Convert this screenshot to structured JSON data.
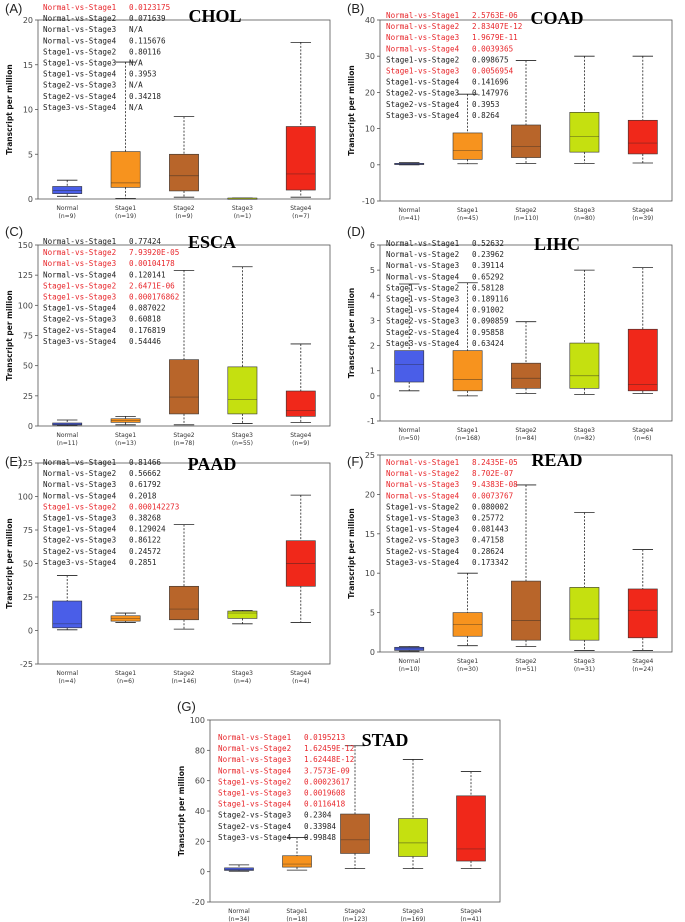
{
  "figure": {
    "colors": {
      "Normal": "#4a5ee8",
      "Stage1": "#f7931e",
      "Stage2": "#b8652a",
      "Stage3": "#c5e010",
      "Stage4": "#f0281a",
      "significant": "#e8262b",
      "nonsignificant": "#222222"
    }
  },
  "chart_data": [
    {
      "type": "boxplot",
      "panel": "(A)",
      "title": "CHOL",
      "ylabel": "Transcript per million",
      "ylim": [
        0,
        20
      ],
      "yticks": [
        0,
        5,
        10,
        15,
        20
      ],
      "categories": [
        "Normal",
        "Stage1",
        "Stage2",
        "Stage3",
        "Stage4"
      ],
      "counts": [
        "(n=9)",
        "(n=19)",
        "(n=9)",
        "(n=1)",
        "(n=7)"
      ],
      "boxes": [
        {
          "min": 0.3,
          "q1": 0.6,
          "median": 0.95,
          "q3": 1.4,
          "max": 2.1
        },
        {
          "min": 0.05,
          "q1": 1.3,
          "median": 1.8,
          "q3": 5.3,
          "max": 15.3
        },
        {
          "min": 0.2,
          "q1": 0.9,
          "median": 2.6,
          "q3": 5.0,
          "max": 9.2
        },
        {
          "min": 0.1,
          "q1": 0.1,
          "median": 0.1,
          "q3": 0.1,
          "max": 0.1
        },
        {
          "min": 0.2,
          "q1": 1.0,
          "median": 2.8,
          "q3": 8.1,
          "max": 17.5
        }
      ],
      "stats": [
        {
          "label": "Normal-vs-Stage1",
          "value": "0.0123175",
          "significant": true
        },
        {
          "label": "Normal-vs-Stage2",
          "value": "0.071639",
          "significant": false
        },
        {
          "label": "Normal-vs-Stage3",
          "value": "N/A",
          "significant": false
        },
        {
          "label": "Normal-vs-Stage4",
          "value": "0.115676",
          "significant": false
        },
        {
          "label": "Stage1-vs-Stage2",
          "value": "0.80116",
          "significant": false
        },
        {
          "label": "Stage1-vs-Stage3",
          "value": "N/A",
          "significant": false
        },
        {
          "label": "Stage1-vs-Stage4",
          "value": "0.3953",
          "significant": false
        },
        {
          "label": "Stage2-vs-Stage3",
          "value": "N/A",
          "significant": false
        },
        {
          "label": "Stage2-vs-Stage4",
          "value": "0.34218",
          "significant": false
        },
        {
          "label": "Stage3-vs-Stage4",
          "value": "N/A",
          "significant": false
        }
      ]
    },
    {
      "type": "boxplot",
      "panel": "(B)",
      "title": "COAD",
      "ylabel": "Transcript per million",
      "ylim": [
        -10,
        40
      ],
      "yticks": [
        -10,
        0,
        10,
        20,
        30,
        40
      ],
      "categories": [
        "Normal",
        "Stage1",
        "Stage2",
        "Stage3",
        "Stage4"
      ],
      "counts": [
        "(n=41)",
        "(n=45)",
        "(n=110)",
        "(n=80)",
        "(n=39)"
      ],
      "boxes": [
        {
          "min": 0.0,
          "q1": 0.1,
          "median": 0.2,
          "q3": 0.4,
          "max": 0.6
        },
        {
          "min": 0.3,
          "q1": 1.5,
          "median": 4.0,
          "q3": 8.8,
          "max": 19.5
        },
        {
          "min": 0.4,
          "q1": 2.0,
          "median": 5.0,
          "q3": 11.0,
          "max": 28.8
        },
        {
          "min": 0.4,
          "q1": 3.5,
          "median": 7.8,
          "q3": 14.5,
          "max": 30.0
        },
        {
          "min": 0.5,
          "q1": 3.0,
          "median": 6.0,
          "q3": 12.3,
          "max": 30.0
        }
      ],
      "stats": [
        {
          "label": "Normal-vs-Stage1",
          "value": "2.5763E-06",
          "significant": true
        },
        {
          "label": "Normal-vs-Stage2",
          "value": "2.83407E-12",
          "significant": true
        },
        {
          "label": "Normal-vs-Stage3",
          "value": "1.9679E-11",
          "significant": true
        },
        {
          "label": "Normal-vs-Stage4",
          "value": "0.0039365",
          "significant": true
        },
        {
          "label": "Stage1-vs-Stage2",
          "value": "0.098675",
          "significant": false
        },
        {
          "label": "Stage1-vs-Stage3",
          "value": "0.0056954",
          "significant": true
        },
        {
          "label": "Stage1-vs-Stage4",
          "value": "0.141696",
          "significant": false
        },
        {
          "label": "Stage2-vs-Stage3",
          "value": "0.147976",
          "significant": false
        },
        {
          "label": "Stage2-vs-Stage4",
          "value": "0.3953",
          "significant": false
        },
        {
          "label": "Stage3-vs-Stage4",
          "value": "0.8264",
          "significant": false
        }
      ]
    },
    {
      "type": "boxplot",
      "panel": "(C)",
      "title": "ESCA",
      "ylabel": "Transcript per million",
      "ylim": [
        0,
        150
      ],
      "yticks": [
        0,
        25,
        50,
        75,
        100,
        125,
        150
      ],
      "categories": [
        "Normal",
        "Stage1",
        "Stage2",
        "Stage3",
        "Stage4"
      ],
      "counts": [
        "(n=11)",
        "(n=13)",
        "(n=78)",
        "(n=55)",
        "(n=9)"
      ],
      "boxes": [
        {
          "min": 0.3,
          "q1": 0.8,
          "median": 1.5,
          "q3": 2.5,
          "max": 5.0
        },
        {
          "min": 1.0,
          "q1": 3.0,
          "median": 4.5,
          "q3": 6.0,
          "max": 8.0
        },
        {
          "min": 1.0,
          "q1": 10.0,
          "median": 24.0,
          "q3": 55.0,
          "max": 129.0
        },
        {
          "min": 2.0,
          "q1": 10.0,
          "median": 22.0,
          "q3": 49.0,
          "max": 132.0
        },
        {
          "min": 3.0,
          "q1": 8.0,
          "median": 13.0,
          "q3": 29.0,
          "max": 68.0
        }
      ],
      "stats": [
        {
          "label": "Normal-vs-Stage1",
          "value": "0.77424",
          "significant": false
        },
        {
          "label": "Normal-vs-Stage2",
          "value": "7.93920E-05",
          "significant": true
        },
        {
          "label": "Normal-vs-Stage3",
          "value": "0.00104178",
          "significant": true
        },
        {
          "label": "Normal-vs-Stage4",
          "value": "0.120141",
          "significant": false
        },
        {
          "label": "Stage1-vs-Stage2",
          "value": "2.6471E-06",
          "significant": true
        },
        {
          "label": "Stage1-vs-Stage3",
          "value": "0.000176862",
          "significant": true
        },
        {
          "label": "Stage1-vs-Stage4",
          "value": "0.087022",
          "significant": false
        },
        {
          "label": "Stage2-vs-Stage3",
          "value": "0.60818",
          "significant": false
        },
        {
          "label": "Stage2-vs-Stage4",
          "value": "0.176819",
          "significant": false
        },
        {
          "label": "Stage3-vs-Stage4",
          "value": "0.54446",
          "significant": false
        }
      ]
    },
    {
      "type": "boxplot",
      "panel": "(D)",
      "title": "LIHC",
      "ylabel": "Transcript per million",
      "ylim": [
        -1,
        6
      ],
      "yticks": [
        -1,
        0,
        1,
        2,
        3,
        4,
        5,
        6
      ],
      "categories": [
        "Normal",
        "Stage1",
        "Stage2",
        "Stage3",
        "Stage4"
      ],
      "counts": [
        "(n=50)",
        "(n=168)",
        "(n=84)",
        "(n=82)",
        "(n=6)"
      ],
      "boxes": [
        {
          "min": 0.2,
          "q1": 0.55,
          "median": 1.25,
          "q3": 1.8,
          "max": 4.45
        },
        {
          "min": 0.0,
          "q1": 0.2,
          "median": 0.65,
          "q3": 1.8,
          "max": 4.5
        },
        {
          "min": 0.1,
          "q1": 0.3,
          "median": 0.7,
          "q3": 1.3,
          "max": 2.95
        },
        {
          "min": 0.05,
          "q1": 0.3,
          "median": 0.8,
          "q3": 2.1,
          "max": 5.0
        },
        {
          "min": 0.1,
          "q1": 0.2,
          "median": 0.45,
          "q3": 2.65,
          "max": 5.1
        }
      ],
      "stats": [
        {
          "label": "Normal-vs-Stage1",
          "value": "0.52632",
          "significant": false
        },
        {
          "label": "Normal-vs-Stage2",
          "value": "0.23962",
          "significant": false
        },
        {
          "label": "Normal-vs-Stage3",
          "value": "0.39114",
          "significant": false
        },
        {
          "label": "Normal-vs-Stage4",
          "value": "0.65292",
          "significant": false
        },
        {
          "label": "Stage1-vs-Stage2",
          "value": "0.58128",
          "significant": false
        },
        {
          "label": "Stage1-vs-Stage3",
          "value": "0.189116",
          "significant": false
        },
        {
          "label": "Stage1-vs-Stage4",
          "value": "0.91002",
          "significant": false
        },
        {
          "label": "Stage2-vs-Stage3",
          "value": "0.090859",
          "significant": false
        },
        {
          "label": "Stage2-vs-Stage4",
          "value": "0.95858",
          "significant": false
        },
        {
          "label": "Stage3-vs-Stage4",
          "value": "0.63424",
          "significant": false
        }
      ]
    },
    {
      "type": "boxplot",
      "panel": "(E)",
      "title": "PAAD",
      "ylabel": "Transcript per million",
      "ylim": [
        -25,
        125
      ],
      "yticks": [
        -25,
        0,
        25,
        50,
        75,
        100,
        125
      ],
      "categories": [
        "Normal",
        "Stage1",
        "Stage2",
        "Stage3",
        "Stage4"
      ],
      "counts": [
        "(n=4)",
        "(n=6)",
        "(n=146)",
        "(n=4)",
        "(n=4)"
      ],
      "boxes": [
        {
          "min": 0.5,
          "q1": 2.0,
          "median": 5.0,
          "q3": 22.0,
          "max": 41.0
        },
        {
          "min": 6.0,
          "q1": 7.0,
          "median": 9.0,
          "q3": 11.0,
          "max": 13.0
        },
        {
          "min": 1.0,
          "q1": 8.0,
          "median": 16.0,
          "q3": 33.0,
          "max": 79.0
        },
        {
          "min": 5.0,
          "q1": 9.0,
          "median": 13.0,
          "q3": 14.5,
          "max": 15.0
        },
        {
          "min": 6.0,
          "q1": 33.0,
          "median": 50.0,
          "q3": 67.0,
          "max": 101.0
        }
      ],
      "stats": [
        {
          "label": "Normal-vs-Stage1",
          "value": "0.81466",
          "significant": false
        },
        {
          "label": "Normal-vs-Stage2",
          "value": "0.56662",
          "significant": false
        },
        {
          "label": "Normal-vs-Stage3",
          "value": "0.61792",
          "significant": false
        },
        {
          "label": "Normal-vs-Stage4",
          "value": "0.2018",
          "significant": false
        },
        {
          "label": "Stage1-vs-Stage2",
          "value": "0.000142273",
          "significant": true
        },
        {
          "label": "Stage1-vs-Stage3",
          "value": "0.38268",
          "significant": false
        },
        {
          "label": "Stage1-vs-Stage4",
          "value": "0.129024",
          "significant": false
        },
        {
          "label": "Stage2-vs-Stage3",
          "value": "0.86122",
          "significant": false
        },
        {
          "label": "Stage2-vs-Stage4",
          "value": "0.24572",
          "significant": false
        },
        {
          "label": "Stage3-vs-Stage4",
          "value": "0.2851",
          "significant": false
        }
      ]
    },
    {
      "type": "boxplot",
      "panel": "(F)",
      "title": "READ",
      "ylabel": "Transcript per million",
      "ylim": [
        0,
        25
      ],
      "yticks": [
        0,
        5,
        10,
        15,
        20,
        25
      ],
      "categories": [
        "Normal",
        "Stage1",
        "Stage2",
        "Stage3",
        "Stage4"
      ],
      "counts": [
        "(n=10)",
        "(n=30)",
        "(n=51)",
        "(n=31)",
        "(n=24)"
      ],
      "boxes": [
        {
          "min": 0.1,
          "q1": 0.2,
          "median": 0.4,
          "q3": 0.6,
          "max": 0.7
        },
        {
          "min": 0.8,
          "q1": 2.0,
          "median": 3.5,
          "q3": 5.0,
          "max": 10.0
        },
        {
          "min": 0.7,
          "q1": 1.5,
          "median": 4.0,
          "q3": 9.0,
          "max": 21.2
        },
        {
          "min": 0.2,
          "q1": 1.5,
          "median": 4.2,
          "q3": 8.2,
          "max": 17.7
        },
        {
          "min": 0.2,
          "q1": 1.8,
          "median": 5.3,
          "q3": 8.0,
          "max": 13.0
        }
      ],
      "stats": [
        {
          "label": "Normal-vs-Stage1",
          "value": "8.2435E-05",
          "significant": true
        },
        {
          "label": "Normal-vs-Stage2",
          "value": "8.702E-07",
          "significant": true
        },
        {
          "label": "Normal-vs-Stage3",
          "value": "9.4383E-08",
          "significant": true
        },
        {
          "label": "Normal-vs-Stage4",
          "value": "0.0073767",
          "significant": true
        },
        {
          "label": "Stage1-vs-Stage2",
          "value": "0.080002",
          "significant": false
        },
        {
          "label": "Stage1-vs-Stage3",
          "value": "0.25772",
          "significant": false
        },
        {
          "label": "Stage1-vs-Stage4",
          "value": "0.081443",
          "significant": false
        },
        {
          "label": "Stage2-vs-Stage3",
          "value": "0.47158",
          "significant": false
        },
        {
          "label": "Stage2-vs-Stage4",
          "value": "0.28624",
          "significant": false
        },
        {
          "label": "Stage3-vs-Stage4",
          "value": "0.173342",
          "significant": false
        }
      ]
    },
    {
      "type": "boxplot",
      "panel": "(G)",
      "title": "STAD",
      "ylabel": "Transcript per million",
      "ylim": [
        -20,
        100
      ],
      "yticks": [
        -20,
        0,
        20,
        40,
        60,
        80,
        100
      ],
      "categories": [
        "Normal",
        "Stage1",
        "Stage2",
        "Stage3",
        "Stage4"
      ],
      "counts": [
        "(n=34)",
        "(n=18)",
        "(n=123)",
        "(n=169)",
        "(n=41)"
      ],
      "boxes": [
        {
          "min": 0.3,
          "q1": 0.8,
          "median": 1.5,
          "q3": 2.5,
          "max": 4.5
        },
        {
          "min": 1.0,
          "q1": 3.0,
          "median": 5.0,
          "q3": 10.5,
          "max": 22.5
        },
        {
          "min": 2.0,
          "q1": 12.0,
          "median": 21.0,
          "q3": 38.0,
          "max": 83.0
        },
        {
          "min": 2.0,
          "q1": 10.0,
          "median": 19.0,
          "q3": 35.0,
          "max": 74.0
        },
        {
          "min": 2.0,
          "q1": 7.0,
          "median": 15.0,
          "q3": 50.0,
          "max": 66.0
        }
      ],
      "stats": [
        {
          "label": "Normal-vs-Stage1",
          "value": "0.0195213",
          "significant": true
        },
        {
          "label": "Normal-vs-Stage2",
          "value": "1.62459E-12",
          "significant": true
        },
        {
          "label": "Normal-vs-Stage3",
          "value": "1.62448E-12",
          "significant": true
        },
        {
          "label": "Normal-vs-Stage4",
          "value": "3.7573E-09",
          "significant": true
        },
        {
          "label": "Stage1-vs-Stage2",
          "value": "0.00023617",
          "significant": true
        },
        {
          "label": "Stage1-vs-Stage3",
          "value": "0.0019608",
          "significant": true
        },
        {
          "label": "Stage1-vs-Stage4",
          "value": "0.0116418",
          "significant": true
        },
        {
          "label": "Stage2-vs-Stage3",
          "value": "0.2304",
          "significant": false
        },
        {
          "label": "Stage2-vs-Stage4",
          "value": "0.33984",
          "significant": false
        },
        {
          "label": "Stage3-vs-Stage4",
          "value": "0.99848",
          "significant": false
        }
      ]
    }
  ]
}
